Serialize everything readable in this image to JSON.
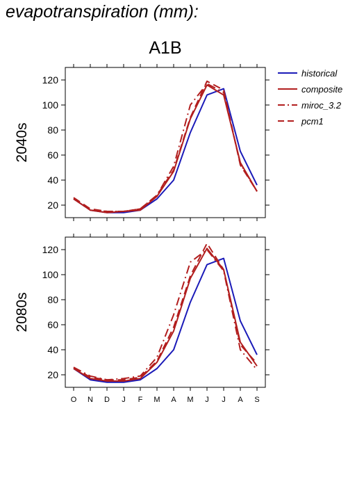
{
  "figure": {
    "title": "evapotranspiration (mm):",
    "panel_heading": "A1B"
  },
  "chart_data": {
    "type": "line",
    "categories": [
      "O",
      "N",
      "D",
      "J",
      "F",
      "M",
      "A",
      "M",
      "J",
      "J",
      "A",
      "S"
    ],
    "ylim": [
      10,
      130
    ],
    "yticks": [
      20,
      40,
      60,
      80,
      100,
      120
    ],
    "grid": false,
    "legend_position": "right",
    "legend": [
      {
        "name": "historical",
        "color": "#1a1ab8",
        "dash": "solid"
      },
      {
        "name": "composite",
        "color": "#b21e1e",
        "dash": "solid"
      },
      {
        "name": "miroc_3.2",
        "color": "#b21e1e",
        "dash": "dashdot"
      },
      {
        "name": "pcm1",
        "color": "#b21e1e",
        "dash": "dashed"
      }
    ],
    "panels": [
      {
        "row_label": "2040s",
        "series": [
          {
            "name": "historical",
            "values": [
              25,
              16,
              14,
              14,
              16,
              25,
              40,
              78,
              108,
              113,
              63,
              36
            ]
          },
          {
            "name": "composite",
            "values": [
              25,
              16,
              14,
              15,
              16,
              27,
              47,
              89,
              116,
              108,
              54,
              31
            ]
          },
          {
            "name": "miroc_3.2",
            "values": [
              25,
              16,
              15,
              15,
              17,
              28,
              51,
              100,
              117,
              110,
              53,
              31
            ]
          },
          {
            "name": "pcm1",
            "values": [
              26,
              17,
              15,
              15,
              17,
              28,
              48,
              90,
              119,
              112,
              52,
              31
            ]
          }
        ]
      },
      {
        "row_label": "2080s",
        "series": [
          {
            "name": "historical",
            "values": [
              25,
              16,
              14,
              14,
              16,
              25,
              40,
              78,
              108,
              113,
              63,
              36
            ]
          },
          {
            "name": "composite",
            "values": [
              25,
              17,
              15,
              15,
              17,
              30,
              55,
              97,
              121,
              104,
              46,
              27
            ]
          },
          {
            "name": "miroc_3.2",
            "values": [
              26,
              19,
              16,
              17,
              19,
              34,
              68,
              110,
              120,
              103,
              40,
              24
            ]
          },
          {
            "name": "pcm1",
            "values": [
              26,
              18,
              16,
              16,
              18,
              31,
              58,
              99,
              125,
              104,
              44,
              29
            ]
          }
        ]
      }
    ]
  }
}
